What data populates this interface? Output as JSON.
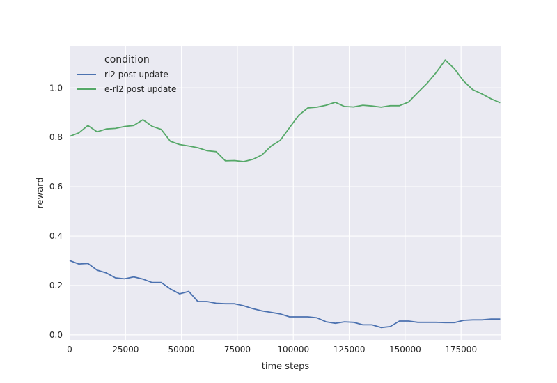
{
  "chart_data": {
    "type": "line",
    "xlabel": "time steps",
    "ylabel": "reward",
    "xlim": [
      0,
      193000
    ],
    "ylim": [
      -0.02,
      1.17
    ],
    "xticks": [
      0,
      25000,
      50000,
      75000,
      100000,
      125000,
      150000,
      175000
    ],
    "yticks": [
      0.0,
      0.2,
      0.4,
      0.6,
      0.8,
      1.0
    ],
    "xtick_labels": [
      "0",
      "25000",
      "50000",
      "75000",
      "100000",
      "125000",
      "150000",
      "175000"
    ],
    "ytick_labels": [
      "0.0",
      "0.2",
      "0.4",
      "0.6",
      "0.8",
      "1.0"
    ],
    "grid": true,
    "legend": {
      "title": "condition",
      "placement": "top-left"
    },
    "x": [
      0,
      4096,
      8192,
      12288,
      16384,
      20480,
      24576,
      28672,
      32768,
      36864,
      40960,
      45056,
      49152,
      53248,
      57344,
      61440,
      65536,
      69632,
      73728,
      77824,
      81920,
      86016,
      90112,
      94208,
      98304,
      102400,
      106496,
      110592,
      114688,
      118784,
      122880,
      126976,
      131072,
      135168,
      139264,
      143360,
      147456,
      151552,
      155648,
      159744,
      163840,
      167936,
      172032,
      176128,
      180224,
      184320,
      188416,
      192512
    ],
    "series": [
      {
        "name": "rl2 post update",
        "color": "#4c72b0",
        "values": [
          0.301,
          0.287,
          0.289,
          0.262,
          0.251,
          0.231,
          0.227,
          0.235,
          0.226,
          0.212,
          0.212,
          0.186,
          0.166,
          0.176,
          0.135,
          0.135,
          0.128,
          0.126,
          0.126,
          0.118,
          0.106,
          0.097,
          0.091,
          0.085,
          0.073,
          0.073,
          0.073,
          0.069,
          0.053,
          0.047,
          0.053,
          0.051,
          0.041,
          0.041,
          0.03,
          0.034,
          0.056,
          0.056,
          0.051,
          0.051,
          0.051,
          0.05,
          0.05,
          0.059,
          0.061,
          0.061,
          0.064,
          0.064
        ]
      },
      {
        "name": "e-rl2 post update",
        "color": "#55a868",
        "values": [
          0.804,
          0.818,
          0.848,
          0.822,
          0.834,
          0.836,
          0.844,
          0.848,
          0.871,
          0.845,
          0.832,
          0.784,
          0.771,
          0.765,
          0.758,
          0.746,
          0.742,
          0.705,
          0.706,
          0.702,
          0.711,
          0.729,
          0.765,
          0.788,
          0.839,
          0.889,
          0.919,
          0.922,
          0.93,
          0.942,
          0.925,
          0.923,
          0.93,
          0.927,
          0.922,
          0.928,
          0.928,
          0.943,
          0.981,
          1.018,
          1.062,
          1.113,
          1.078,
          1.028,
          0.993,
          0.976,
          0.956,
          0.94
        ]
      }
    ]
  }
}
